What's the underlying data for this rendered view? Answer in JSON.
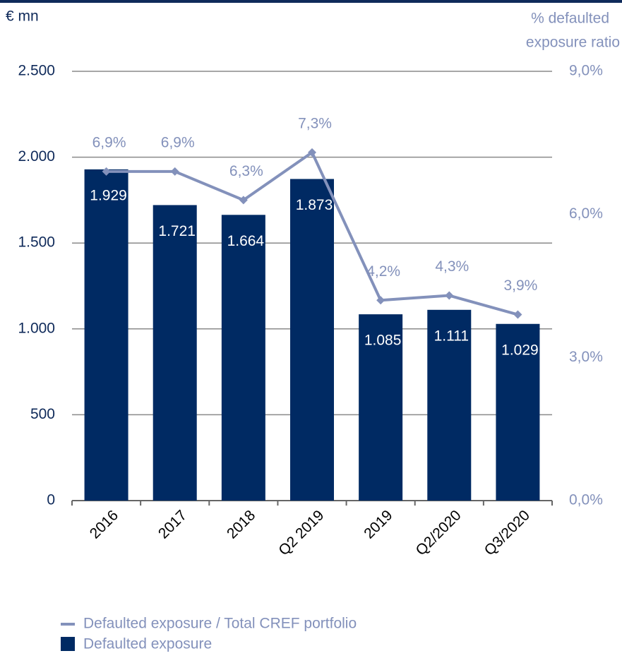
{
  "chart_data": {
    "type": "bar",
    "y_label": "€ mn",
    "y2_label": [
      "% defaulted",
      "exposure ratio"
    ],
    "categories": [
      "2016",
      "2017",
      "2018",
      "Q2 2019",
      "2019",
      "Q2/2020",
      "Q3/2020"
    ],
    "series": [
      {
        "name": "Defaulted exposure",
        "type": "bar",
        "color": "#002a63",
        "values": [
          1929,
          1721,
          1664,
          1873,
          1085,
          1111,
          1029
        ],
        "value_labels": [
          "1.929",
          "1.721",
          "1.664",
          "1.873",
          "1.085",
          "1.111",
          "1.029"
        ]
      },
      {
        "name": "Defaulted exposure / Total CREF portfolio",
        "type": "line",
        "axis": "y2",
        "color": "#8391bb",
        "values": [
          6.9,
          6.9,
          6.3,
          7.3,
          4.2,
          4.3,
          3.9
        ],
        "value_labels": [
          "6,9%",
          "6,9%",
          "6,3%",
          "7,3%",
          "4,2%",
          "4,3%",
          "3,9%"
        ]
      }
    ],
    "ylim": [
      0,
      2500
    ],
    "yticks": [
      0,
      {
        "value": 500,
        "label": "500"
      },
      {
        "value": 1000,
        "label": "1.000"
      },
      {
        "value": 1500,
        "label": "1.500"
      },
      {
        "value": 2000,
        "label": "2.000"
      },
      {
        "value": 2500,
        "label": "2.500"
      }
    ],
    "y2lim": [
      0,
      9
    ],
    "y2ticks": [
      {
        "value": 0,
        "label": "0,0%"
      },
      {
        "value": 3,
        "label": "3,0%"
      },
      {
        "value": 6,
        "label": "6,0%"
      },
      {
        "value": 9,
        "label": "9,0%"
      }
    ],
    "grid": true
  }
}
